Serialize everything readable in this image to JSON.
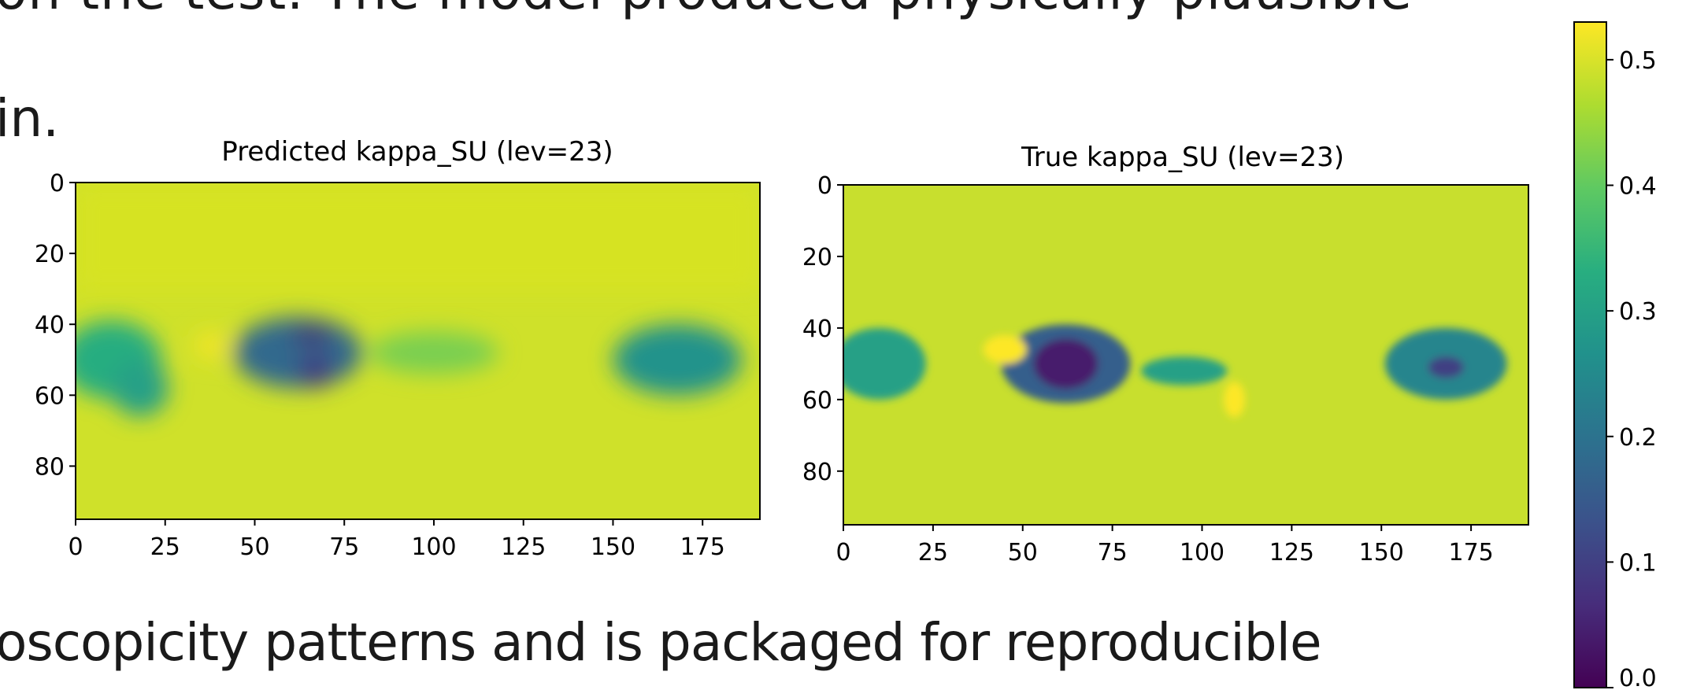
{
  "slide": {
    "line1": "on the test. The model produced physically plausible",
    "line2": "in.",
    "line3": "oscopicity patterns and is packaged for reproducible"
  },
  "chart_data": [
    {
      "type": "heatmap",
      "title": "Predicted kappa_SU (lev=23)",
      "xlim": [
        0,
        191
      ],
      "ylim": [
        95,
        0
      ],
      "xticks": [
        0,
        25,
        50,
        75,
        100,
        125,
        150,
        175
      ],
      "yticks": [
        0,
        20,
        40,
        60,
        80
      ],
      "colormap": "viridis",
      "vmin": 0.0,
      "vmax": 0.53,
      "features": [
        {
          "x": 10,
          "y": 50,
          "rx": 14,
          "ry": 11,
          "value": 0.33
        },
        {
          "x": 18,
          "y": 58,
          "rx": 8,
          "ry": 8,
          "value": 0.3
        },
        {
          "x": 62,
          "y": 48,
          "rx": 18,
          "ry": 10,
          "value": 0.18
        },
        {
          "x": 66,
          "y": 43,
          "rx": 6,
          "ry": 2,
          "value": 0.05
        },
        {
          "x": 67,
          "y": 53,
          "rx": 5,
          "ry": 5,
          "value": 0.1
        },
        {
          "x": 168,
          "y": 50,
          "rx": 18,
          "ry": 10,
          "value": 0.27
        },
        {
          "x": 38,
          "y": 46,
          "rx": 5,
          "ry": 4,
          "value": 0.52
        },
        {
          "x": 100,
          "y": 48,
          "rx": 18,
          "ry": 6,
          "value": 0.42
        }
      ]
    },
    {
      "type": "heatmap",
      "title": "True kappa_SU (lev=23)",
      "xlim": [
        0,
        191
      ],
      "ylim": [
        95,
        0
      ],
      "xticks": [
        0,
        25,
        50,
        75,
        100,
        125,
        150,
        175
      ],
      "yticks": [
        0,
        20,
        40,
        60,
        80
      ],
      "colormap": "viridis",
      "vmin": 0.0,
      "vmax": 0.53,
      "features": [
        {
          "x": 10,
          "y": 50,
          "rx": 13,
          "ry": 10,
          "value": 0.3
        },
        {
          "x": 62,
          "y": 50,
          "rx": 18,
          "ry": 11,
          "value": 0.16
        },
        {
          "x": 62,
          "y": 50,
          "rx": 9,
          "ry": 7,
          "value": 0.04
        },
        {
          "x": 45,
          "y": 46,
          "rx": 6,
          "ry": 4,
          "value": 0.53
        },
        {
          "x": 109,
          "y": 60,
          "rx": 3,
          "ry": 5,
          "value": 0.53
        },
        {
          "x": 168,
          "y": 50,
          "rx": 17,
          "ry": 10,
          "value": 0.24
        },
        {
          "x": 168,
          "y": 51,
          "rx": 5,
          "ry": 3,
          "value": 0.1
        },
        {
          "x": 95,
          "y": 52,
          "rx": 12,
          "ry": 4,
          "value": 0.3
        }
      ]
    }
  ],
  "colorbar": {
    "ticks": [
      "0.0",
      "0.1",
      "0.2",
      "0.3",
      "0.4",
      "0.5"
    ],
    "min": 0.0,
    "max": 0.53
  },
  "colors": {
    "background_field": "#cfe12a",
    "viridis_low": "#440154",
    "viridis_high": "#fde725"
  }
}
